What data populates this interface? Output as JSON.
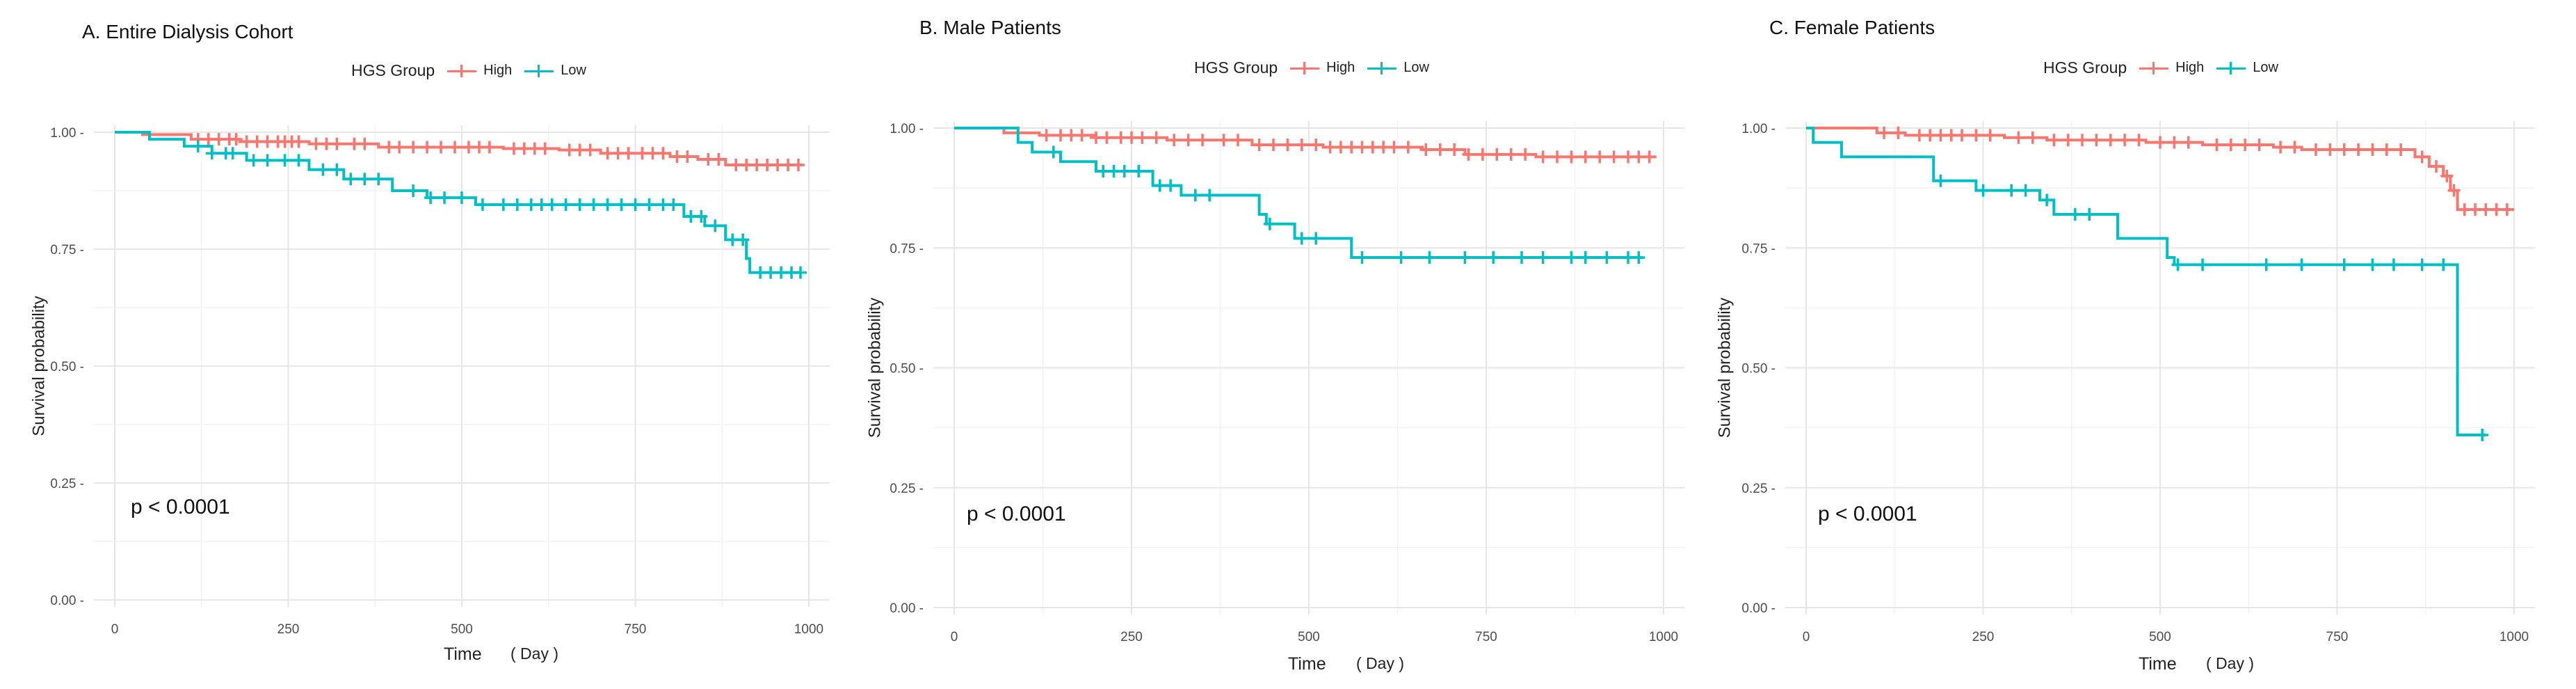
{
  "legend": {
    "title": "HGS Group",
    "items": [
      {
        "label": "High",
        "color": "#f8766d"
      },
      {
        "label": "Low",
        "color": "#00bfc4"
      }
    ]
  },
  "axis": {
    "xlabel": "Time",
    "xunit": "( Day )",
    "ylabel": "Survival probability"
  },
  "chart_data": [
    {
      "type": "line",
      "title": "A. Entire Dialysis Cohort",
      "pvalue": "p < 0.0001",
      "xlim": [
        0,
        1000
      ],
      "ylim": [
        0,
        1
      ],
      "xticks": [
        0,
        250,
        500,
        750,
        1000
      ],
      "yticks": [
        0,
        0.25,
        0.5,
        0.75,
        1.0
      ],
      "xtick_labels": [
        "0",
        "250",
        "500",
        "750",
        "1000"
      ],
      "ytick_labels": [
        "0.00 -",
        "0.25 -",
        "0.50 -",
        "0.75 -",
        "1.00 -"
      ],
      "series": [
        {
          "name": "High",
          "color": "#f8766d",
          "x": [
            0,
            40,
            110,
            180,
            280,
            380,
            560,
            640,
            700,
            800,
            840,
            880,
            990
          ],
          "y": [
            1.0,
            0.995,
            0.985,
            0.98,
            0.975,
            0.968,
            0.965,
            0.962,
            0.955,
            0.948,
            0.942,
            0.93,
            0.93
          ],
          "censor": [
            120,
            135,
            150,
            165,
            175,
            190,
            205,
            220,
            235,
            245,
            255,
            265,
            290,
            305,
            320,
            345,
            360,
            395,
            410,
            430,
            450,
            470,
            490,
            510,
            525,
            540,
            575,
            590,
            605,
            620,
            655,
            670,
            685,
            710,
            725,
            740,
            760,
            775,
            790,
            810,
            825,
            855,
            870,
            895,
            910,
            925,
            940,
            955,
            970,
            985
          ]
        },
        {
          "name": "Low",
          "color": "#00bfc4",
          "x": [
            0,
            50,
            100,
            140,
            190,
            280,
            330,
            400,
            450,
            520,
            820,
            850,
            880,
            910,
            915,
            990
          ],
          "y": [
            1.0,
            0.985,
            0.97,
            0.955,
            0.94,
            0.92,
            0.9,
            0.875,
            0.86,
            0.845,
            0.82,
            0.8,
            0.77,
            0.73,
            0.7,
            0.7
          ],
          "censor": [
            120,
            140,
            160,
            170,
            200,
            220,
            245,
            265,
            300,
            320,
            340,
            360,
            380,
            430,
            455,
            475,
            500,
            530,
            560,
            580,
            600,
            615,
            630,
            650,
            670,
            690,
            710,
            730,
            750,
            770,
            790,
            805,
            830,
            845,
            865,
            890,
            905,
            930,
            945,
            960,
            975,
            988
          ]
        }
      ]
    },
    {
      "type": "line",
      "title": "B. Male Patients",
      "pvalue": "p < 0.0001",
      "xlim": [
        0,
        1000
      ],
      "ylim": [
        0,
        1
      ],
      "xticks": [
        0,
        250,
        500,
        750,
        1000
      ],
      "yticks": [
        0,
        0.25,
        0.5,
        0.75,
        1.0
      ],
      "xtick_labels": [
        "0",
        "250",
        "500",
        "750",
        "1000"
      ],
      "ytick_labels": [
        "0.00 -",
        "0.25 -",
        "0.50 -",
        "0.75 -",
        "1.00 -"
      ],
      "series": [
        {
          "name": "High",
          "color": "#f8766d",
          "x": [
            0,
            70,
            120,
            200,
            300,
            420,
            520,
            660,
            720,
            820,
            990
          ],
          "y": [
            1.0,
            0.99,
            0.985,
            0.98,
            0.975,
            0.965,
            0.96,
            0.955,
            0.945,
            0.94,
            0.94
          ],
          "censor": [
            130,
            150,
            165,
            180,
            200,
            215,
            235,
            250,
            265,
            285,
            310,
            330,
            350,
            380,
            400,
            430,
            450,
            470,
            490,
            510,
            530,
            545,
            560,
            575,
            590,
            605,
            620,
            640,
            665,
            685,
            705,
            725,
            745,
            765,
            785,
            805,
            830,
            850,
            870,
            890,
            910,
            930,
            950,
            965,
            980
          ]
        },
        {
          "name": "Low",
          "color": "#00bfc4",
          "x": [
            0,
            90,
            110,
            150,
            200,
            280,
            320,
            430,
            440,
            480,
            560,
            970
          ],
          "y": [
            1.0,
            0.97,
            0.95,
            0.93,
            0.91,
            0.88,
            0.86,
            0.82,
            0.8,
            0.77,
            0.73,
            0.73
          ],
          "censor": [
            140,
            210,
            225,
            240,
            260,
            290,
            305,
            340,
            360,
            445,
            490,
            510,
            575,
            630,
            670,
            720,
            760,
            800,
            830,
            870,
            890,
            920,
            950,
            965
          ]
        }
      ]
    },
    {
      "type": "line",
      "title": "C. Female Patients",
      "pvalue": "p < 0.0001",
      "xlim": [
        0,
        1000
      ],
      "ylim": [
        0,
        1
      ],
      "xticks": [
        0,
        250,
        500,
        750,
        1000
      ],
      "yticks": [
        0,
        0.25,
        0.5,
        0.75,
        1.0
      ],
      "xtick_labels": [
        "0",
        "250",
        "500",
        "750",
        "1000"
      ],
      "ytick_labels": [
        "0.00 -",
        "0.25 -",
        "0.50 -",
        "0.75 -",
        "1.00 -"
      ],
      "series": [
        {
          "name": "High",
          "color": "#f8766d",
          "x": [
            0,
            100,
            140,
            280,
            340,
            480,
            560,
            660,
            700,
            860,
            880,
            900,
            910,
            920,
            1000
          ],
          "y": [
            1.0,
            0.99,
            0.985,
            0.98,
            0.975,
            0.97,
            0.965,
            0.96,
            0.955,
            0.94,
            0.92,
            0.9,
            0.87,
            0.83,
            0.83
          ],
          "censor": [
            110,
            130,
            160,
            175,
            190,
            205,
            220,
            240,
            260,
            300,
            320,
            350,
            370,
            390,
            410,
            430,
            450,
            470,
            500,
            520,
            540,
            580,
            600,
            620,
            640,
            670,
            690,
            720,
            740,
            760,
            780,
            800,
            820,
            840,
            870,
            890,
            905,
            915,
            930,
            945,
            960,
            975,
            990
          ]
        },
        {
          "name": "Low",
          "color": "#00bfc4",
          "x": [
            0,
            10,
            50,
            180,
            240,
            330,
            350,
            440,
            510,
            520,
            915,
            920,
            960
          ],
          "y": [
            1.0,
            0.97,
            0.94,
            0.89,
            0.87,
            0.85,
            0.82,
            0.77,
            0.73,
            0.715,
            0.715,
            0.36,
            0.36
          ],
          "censor": [
            190,
            250,
            290,
            310,
            340,
            380,
            400,
            525,
            560,
            650,
            700,
            760,
            800,
            830,
            870,
            900,
            955
          ]
        }
      ]
    }
  ]
}
